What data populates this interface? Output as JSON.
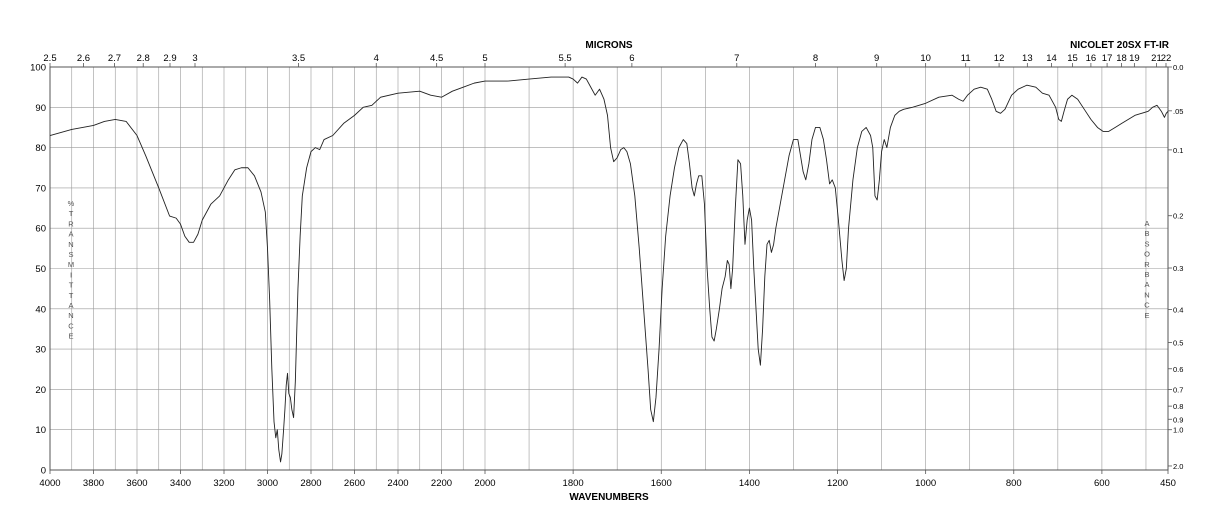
{
  "chart_data": {
    "type": "line",
    "title_top_center": "MICRONS",
    "title_top_right": "NICOLET 20SX FT-IR",
    "xlabel": "WAVENUMBERS",
    "ylabel_left": "%TRANSMITTANCE",
    "ylabel_right": "ABSORBANCE",
    "x_range": [
      4000,
      450
    ],
    "y_range": [
      0,
      100
    ],
    "grid": true,
    "bottom_ticks": [
      "4000",
      "3800",
      "3600",
      "3400",
      "3200",
      "3000",
      "2800",
      "2600",
      "2400",
      "2200",
      "2000",
      "1800",
      "1600",
      "1400",
      "1200",
      "1000",
      "800",
      "600",
      "450"
    ],
    "top_ticks": [
      {
        "label": "2.5",
        "value": 2.5
      },
      {
        "label": "2.6",
        "value": 2.6
      },
      {
        "label": "2.7",
        "value": 2.7
      },
      {
        "label": "2.8",
        "value": 2.8
      },
      {
        "label": "2.9",
        "value": 2.9
      },
      {
        "label": "3",
        "value": 3
      },
      {
        "label": "3.5",
        "value": 3.5
      },
      {
        "label": "4",
        "value": 4
      },
      {
        "label": "4.5",
        "value": 4.5
      },
      {
        "label": "5",
        "value": 5
      },
      {
        "label": "5.5",
        "value": 5.5
      },
      {
        "label": "6",
        "value": 6
      },
      {
        "label": "7",
        "value": 7
      },
      {
        "label": "8",
        "value": 8
      },
      {
        "label": "9",
        "value": 9
      },
      {
        "label": "10",
        "value": 10
      },
      {
        "label": "11",
        "value": 11
      },
      {
        "label": "12",
        "value": 12
      },
      {
        "label": "13",
        "value": 13
      },
      {
        "label": "14",
        "value": 14
      },
      {
        "label": "15",
        "value": 15
      },
      {
        "label": "16",
        "value": 16
      },
      {
        "label": "17",
        "value": 17
      },
      {
        "label": "18",
        "value": 18
      },
      {
        "label": "19",
        "value": 19
      },
      {
        "label": "21",
        "value": 21
      },
      {
        "label": "22",
        "value": 22
      }
    ],
    "left_ticks": [
      "0",
      "10",
      "20",
      "30",
      "40",
      "50",
      "60",
      "70",
      "80",
      "90",
      "100"
    ],
    "right_ticks": [
      {
        "label": "0.0",
        "value": 0.0
      },
      {
        "label": ".05",
        "value": 0.05
      },
      {
        "label": "0.1",
        "value": 0.1
      },
      {
        "label": "0.2",
        "value": 0.2
      },
      {
        "label": "0.3",
        "value": 0.3
      },
      {
        "label": "0.4",
        "value": 0.4
      },
      {
        "label": "0.5",
        "value": 0.5
      },
      {
        "label": "0.6",
        "value": 0.6
      },
      {
        "label": "0.7",
        "value": 0.7
      },
      {
        "label": "0.8",
        "value": 0.8
      },
      {
        "label": "0.9",
        "value": 0.9
      },
      {
        "label": "1.0",
        "value": 1.0
      },
      {
        "label": "2.0",
        "value": 2.0
      }
    ],
    "series": [
      {
        "color": "#222222",
        "points": [
          [
            4000,
            83
          ],
          [
            3900,
            84.5
          ],
          [
            3800,
            85.5
          ],
          [
            3750,
            86.5
          ],
          [
            3700,
            87
          ],
          [
            3650,
            86.5
          ],
          [
            3600,
            83
          ],
          [
            3560,
            78
          ],
          [
            3500,
            70
          ],
          [
            3450,
            63
          ],
          [
            3420,
            62.5
          ],
          [
            3400,
            61
          ],
          [
            3380,
            58
          ],
          [
            3360,
            56.5
          ],
          [
            3340,
            56.5
          ],
          [
            3320,
            58.5
          ],
          [
            3300,
            62
          ],
          [
            3260,
            66
          ],
          [
            3220,
            68
          ],
          [
            3180,
            72
          ],
          [
            3150,
            74.5
          ],
          [
            3120,
            75
          ],
          [
            3090,
            75
          ],
          [
            3060,
            73
          ],
          [
            3030,
            69
          ],
          [
            3010,
            64
          ],
          [
            3000,
            55
          ],
          [
            2990,
            42
          ],
          [
            2980,
            25
          ],
          [
            2970,
            12
          ],
          [
            2962,
            8
          ],
          [
            2955,
            10
          ],
          [
            2948,
            5
          ],
          [
            2940,
            2
          ],
          [
            2934,
            4
          ],
          [
            2926,
            10
          ],
          [
            2920,
            15
          ],
          [
            2914,
            21
          ],
          [
            2908,
            24
          ],
          [
            2902,
            19
          ],
          [
            2895,
            18
          ],
          [
            2888,
            15
          ],
          [
            2880,
            13
          ],
          [
            2872,
            22
          ],
          [
            2860,
            45
          ],
          [
            2850,
            58
          ],
          [
            2840,
            68
          ],
          [
            2820,
            75
          ],
          [
            2800,
            79
          ],
          [
            2780,
            80
          ],
          [
            2760,
            79.5
          ],
          [
            2740,
            82
          ],
          [
            2700,
            83
          ],
          [
            2650,
            86
          ],
          [
            2600,
            88
          ],
          [
            2560,
            90
          ],
          [
            2520,
            90.5
          ],
          [
            2480,
            92.5
          ],
          [
            2400,
            93.5
          ],
          [
            2300,
            94
          ],
          [
            2250,
            93
          ],
          [
            2200,
            92.5
          ],
          [
            2150,
            94
          ],
          [
            2100,
            95
          ],
          [
            2050,
            96
          ],
          [
            2000,
            96.5
          ],
          [
            1950,
            96.5
          ],
          [
            1900,
            97
          ],
          [
            1850,
            97.5
          ],
          [
            1810,
            97.5
          ],
          [
            1800,
            97
          ],
          [
            1790,
            96
          ],
          [
            1780,
            97.5
          ],
          [
            1770,
            97
          ],
          [
            1760,
            95
          ],
          [
            1750,
            93
          ],
          [
            1740,
            94.5
          ],
          [
            1730,
            92
          ],
          [
            1722,
            88
          ],
          [
            1715,
            80
          ],
          [
            1708,
            76.5
          ],
          [
            1700,
            77.5
          ],
          [
            1692,
            79.5
          ],
          [
            1685,
            80
          ],
          [
            1678,
            79
          ],
          [
            1670,
            76
          ],
          [
            1660,
            68
          ],
          [
            1650,
            55
          ],
          [
            1640,
            40
          ],
          [
            1630,
            25
          ],
          [
            1624,
            15
          ],
          [
            1618,
            12
          ],
          [
            1612,
            18
          ],
          [
            1605,
            30
          ],
          [
            1598,
            45
          ],
          [
            1590,
            58
          ],
          [
            1580,
            68
          ],
          [
            1570,
            75
          ],
          [
            1560,
            80
          ],
          [
            1550,
            82
          ],
          [
            1542,
            81
          ],
          [
            1536,
            76
          ],
          [
            1530,
            70
          ],
          [
            1525,
            68
          ],
          [
            1520,
            71
          ],
          [
            1515,
            73
          ],
          [
            1508,
            73
          ],
          [
            1502,
            66
          ],
          [
            1496,
            50
          ],
          [
            1490,
            40
          ],
          [
            1485,
            33
          ],
          [
            1480,
            32
          ],
          [
            1475,
            35
          ],
          [
            1468,
            40
          ],
          [
            1462,
            45
          ],
          [
            1455,
            48
          ],
          [
            1450,
            52
          ],
          [
            1446,
            51
          ],
          [
            1442,
            45
          ],
          [
            1438,
            50
          ],
          [
            1432,
            65
          ],
          [
            1426,
            77
          ],
          [
            1420,
            76
          ],
          [
            1415,
            68
          ],
          [
            1410,
            56
          ],
          [
            1405,
            62
          ],
          [
            1400,
            65
          ],
          [
            1395,
            62
          ],
          [
            1390,
            50
          ],
          [
            1385,
            40
          ],
          [
            1380,
            30
          ],
          [
            1375,
            26
          ],
          [
            1370,
            35
          ],
          [
            1365,
            48
          ],
          [
            1360,
            56
          ],
          [
            1355,
            57
          ],
          [
            1350,
            54
          ],
          [
            1345,
            56
          ],
          [
            1340,
            60
          ],
          [
            1330,
            66
          ],
          [
            1320,
            72
          ],
          [
            1310,
            78
          ],
          [
            1300,
            82
          ],
          [
            1290,
            82
          ],
          [
            1284,
            78
          ],
          [
            1278,
            74
          ],
          [
            1272,
            72
          ],
          [
            1265,
            76
          ],
          [
            1258,
            82
          ],
          [
            1250,
            85
          ],
          [
            1240,
            85
          ],
          [
            1232,
            82
          ],
          [
            1225,
            77
          ],
          [
            1218,
            71
          ],
          [
            1212,
            72
          ],
          [
            1205,
            70
          ],
          [
            1198,
            62
          ],
          [
            1190,
            52
          ],
          [
            1185,
            47
          ],
          [
            1180,
            50
          ],
          [
            1175,
            60
          ],
          [
            1165,
            72
          ],
          [
            1155,
            80
          ],
          [
            1145,
            84
          ],
          [
            1135,
            85
          ],
          [
            1125,
            83
          ],
          [
            1120,
            80
          ],
          [
            1115,
            68
          ],
          [
            1110,
            67
          ],
          [
            1105,
            72
          ],
          [
            1100,
            79
          ],
          [
            1094,
            82
          ],
          [
            1088,
            80
          ],
          [
            1080,
            85
          ],
          [
            1070,
            88
          ],
          [
            1060,
            89
          ],
          [
            1050,
            89.5
          ],
          [
            1030,
            90
          ],
          [
            1000,
            91
          ],
          [
            970,
            92.5
          ],
          [
            940,
            93
          ],
          [
            925,
            92
          ],
          [
            915,
            91.5
          ],
          [
            905,
            93
          ],
          [
            890,
            94.5
          ],
          [
            875,
            95
          ],
          [
            860,
            94.5
          ],
          [
            850,
            92
          ],
          [
            840,
            89
          ],
          [
            830,
            88.5
          ],
          [
            820,
            89.5
          ],
          [
            805,
            93
          ],
          [
            790,
            94.5
          ],
          [
            770,
            95.5
          ],
          [
            750,
            95
          ],
          [
            735,
            93.5
          ],
          [
            720,
            93
          ],
          [
            705,
            90
          ],
          [
            698,
            87
          ],
          [
            692,
            86.5
          ],
          [
            686,
            89
          ],
          [
            678,
            92
          ],
          [
            668,
            93
          ],
          [
            655,
            92
          ],
          [
            640,
            89.5
          ],
          [
            625,
            87
          ],
          [
            610,
            85
          ],
          [
            597,
            84
          ],
          [
            585,
            84
          ],
          [
            570,
            85
          ],
          [
            555,
            86
          ],
          [
            540,
            87
          ],
          [
            525,
            88
          ],
          [
            510,
            88.5
          ],
          [
            495,
            89
          ],
          [
            485,
            90
          ],
          [
            475,
            90.5
          ],
          [
            465,
            89
          ],
          [
            458,
            87.5
          ],
          [
            454,
            88.5
          ],
          [
            450,
            89
          ]
        ]
      }
    ]
  }
}
